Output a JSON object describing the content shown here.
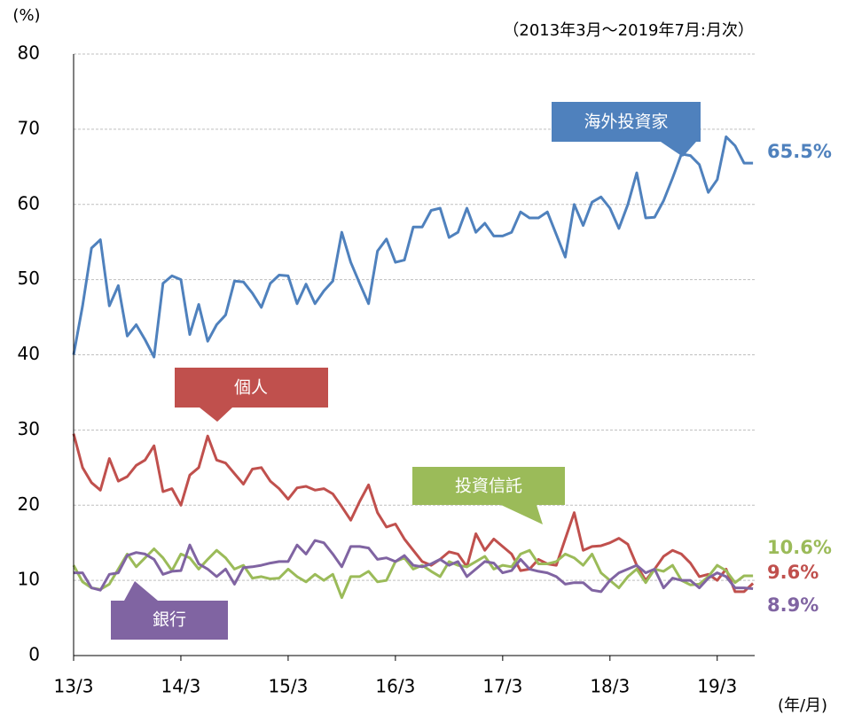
{
  "chart_data": {
    "type": "line",
    "subtitle": "（2013年3月～2019年7月:月次）",
    "y_label": "(%)",
    "x_label": "(年/月)",
    "ylim": [
      0,
      80
    ],
    "yticks": [
      0,
      10,
      20,
      30,
      40,
      50,
      60,
      70,
      80
    ],
    "grid": true,
    "categories": [
      "13/3",
      null,
      null,
      null,
      null,
      null,
      null,
      null,
      null,
      null,
      null,
      null,
      "14/3",
      null,
      null,
      null,
      null,
      null,
      null,
      null,
      null,
      null,
      null,
      null,
      "15/3",
      null,
      null,
      null,
      null,
      null,
      null,
      null,
      null,
      null,
      null,
      null,
      "16/3",
      null,
      null,
      null,
      null,
      null,
      null,
      null,
      null,
      null,
      null,
      null,
      "17/3",
      null,
      null,
      null,
      null,
      null,
      null,
      null,
      null,
      null,
      null,
      null,
      "18/3",
      null,
      null,
      null,
      null,
      null,
      null,
      null,
      null,
      null,
      null,
      null,
      "19/3",
      null,
      null,
      null,
      null
    ],
    "series": [
      {
        "name": "海外投資家",
        "color": "#4f81bd",
        "end_label": "65.5%",
        "values": [
          40,
          46.5,
          54.2,
          55.3,
          46.5,
          49.2,
          42.5,
          44,
          42,
          39.7,
          49.5,
          50.5,
          50,
          42.7,
          46.7,
          41.8,
          44,
          45.3,
          49.8,
          49.7,
          48.2,
          46.3,
          49.5,
          50.6,
          50.5,
          46.8,
          49.4,
          46.8,
          48.5,
          49.8,
          56.3,
          52.3,
          49.5,
          46.8,
          53.8,
          55.4,
          52.3,
          52.6,
          57,
          57,
          59.2,
          59.5,
          55.6,
          56.3,
          59.5,
          56.3,
          57.5,
          55.8,
          55.8,
          56.3,
          59,
          58.2,
          58.2,
          59,
          56,
          53,
          60,
          57.2,
          60.3,
          61,
          59.5,
          56.8,
          60,
          64.2,
          58.2,
          58.3,
          60.5,
          63.5,
          66.7,
          66.5,
          65.3,
          61.6,
          63.3,
          69,
          67.8,
          65.5,
          65.5
        ]
      },
      {
        "name": "個人",
        "color": "#c0504d",
        "end_label": "9.6%",
        "values": [
          29.5,
          25,
          23,
          22,
          26.2,
          23.2,
          23.8,
          25.3,
          26,
          27.9,
          21.8,
          22.2,
          20,
          24,
          25,
          29.2,
          26,
          25.6,
          24.2,
          22.8,
          24.8,
          25,
          23.2,
          22.2,
          20.8,
          22.3,
          22.5,
          22,
          22.2,
          21.5,
          19.8,
          18,
          20.5,
          22.7,
          19,
          17.1,
          17.5,
          15.5,
          14,
          12.5,
          12,
          12.8,
          13.8,
          13.5,
          11.8,
          16.2,
          14,
          15.5,
          14.5,
          13.5,
          11.3,
          11.5,
          12.8,
          12.2,
          12,
          15.5,
          19,
          14,
          14.5,
          14.6,
          15,
          15.6,
          14.8,
          12,
          10,
          11.5,
          13.2,
          14,
          13.5,
          12.3,
          10.5,
          10.8,
          10,
          11.5,
          8.5,
          8.5,
          9.6
        ]
      },
      {
        "name": "投資信託",
        "color": "#9bbb59",
        "end_label": "10.6%",
        "values": [
          12,
          9.8,
          9,
          8.8,
          9.5,
          11.5,
          13.5,
          11.8,
          13,
          14.2,
          13,
          11.3,
          13.5,
          13,
          11.5,
          12.8,
          14,
          13,
          11.5,
          12,
          10.3,
          10.5,
          10.2,
          10.3,
          11.5,
          10.5,
          9.8,
          10.8,
          10,
          10.8,
          7.7,
          10.5,
          10.5,
          11.2,
          9.8,
          10,
          12.5,
          13,
          11.5,
          12,
          11.2,
          10.5,
          12.5,
          12,
          11.8,
          12.5,
          13.2,
          11.5,
          12,
          11.8,
          13.5,
          14,
          12.2,
          12.2,
          12.5,
          13.5,
          13,
          12,
          13.5,
          11,
          10,
          9,
          10.5,
          11.5,
          9.7,
          11.5,
          11.2,
          12,
          10,
          9.4,
          9.5,
          10.5,
          12,
          11.3,
          9.7,
          10.6,
          10.6
        ]
      },
      {
        "name": "銀行",
        "color": "#8064a2",
        "end_label": "8.9%",
        "values": [
          11,
          11,
          9,
          8.7,
          10.8,
          11,
          13.3,
          13.7,
          13.5,
          12.8,
          10.8,
          11.2,
          11.3,
          14.7,
          12.2,
          11.5,
          10.5,
          11.5,
          9.5,
          11.7,
          11.8,
          12,
          12.3,
          12.5,
          12.5,
          14.7,
          13.5,
          15.3,
          15,
          13.5,
          11.8,
          14.5,
          14.5,
          14.3,
          12.8,
          13,
          12.5,
          13.3,
          12,
          11.8,
          12.2,
          12.8,
          12,
          12.5,
          10.5,
          11.5,
          12.5,
          12.3,
          11,
          11.3,
          12.8,
          11.5,
          11.2,
          11,
          10.5,
          9.5,
          9.7,
          9.7,
          8.7,
          8.5,
          10,
          11,
          11.5,
          12,
          11,
          11.5,
          9,
          10.3,
          10,
          10,
          9,
          10.3,
          11,
          10.5,
          9,
          9,
          8.9
        ]
      }
    ]
  }
}
